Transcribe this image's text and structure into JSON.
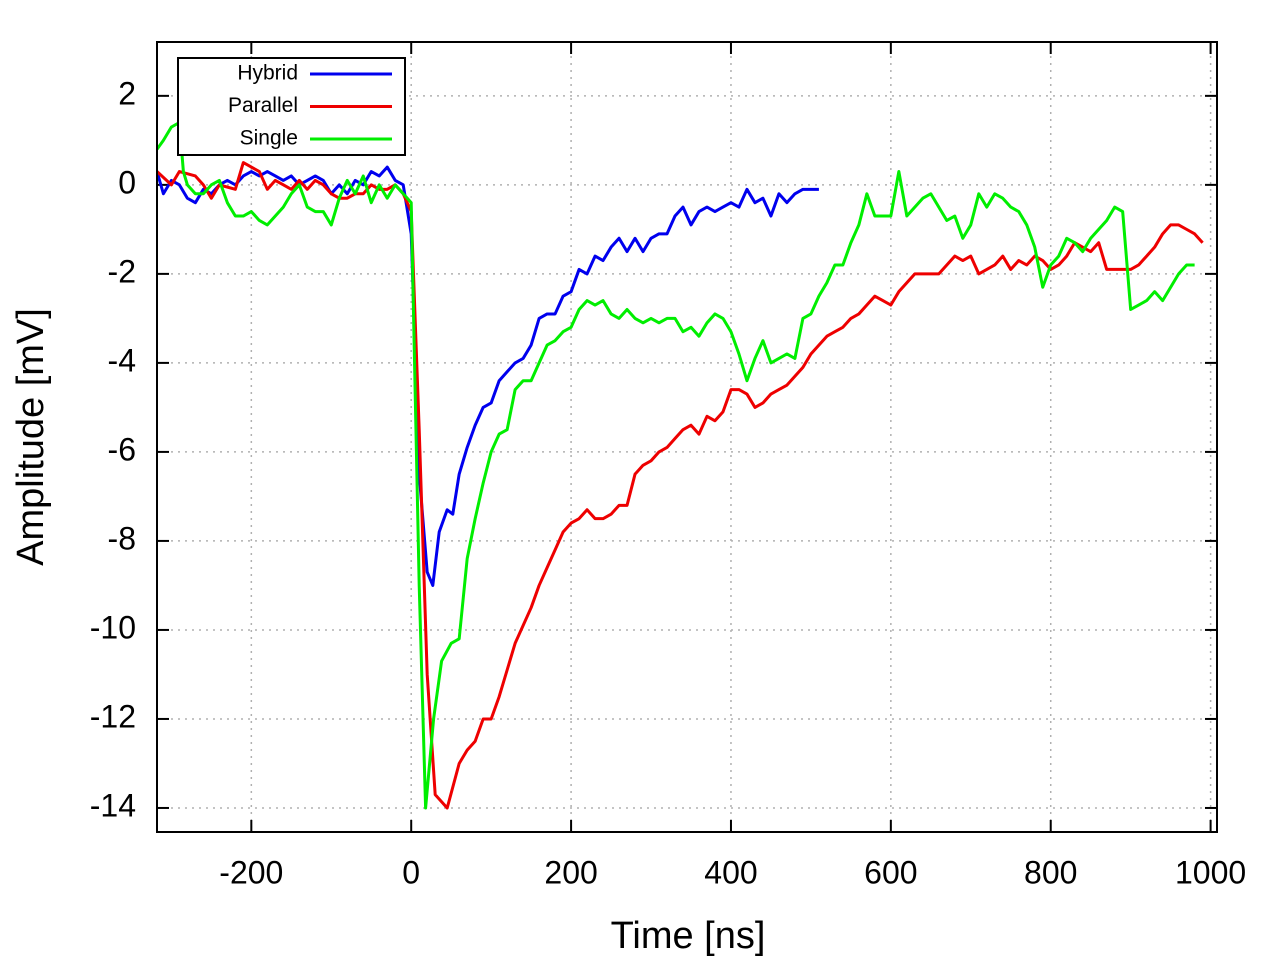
{
  "chart_data": {
    "type": "line",
    "x_label": "Time [ns]",
    "y_label": "Amplitude [mV]",
    "xlim": [
      -318,
      1008
    ],
    "ylim": [
      -14.54,
      3.21
    ],
    "xticks": [
      -200,
      0,
      200,
      400,
      600,
      800,
      1000
    ],
    "yticks": [
      2,
      0,
      -2,
      -4,
      -6,
      -8,
      -10,
      -12,
      -14
    ],
    "grid": true,
    "legend": "upper left",
    "series": [
      {
        "name": "Hybrid",
        "color": "#0000ee",
        "x": [
          -318,
          -310,
          -300,
          -290,
          -280,
          -270,
          -260,
          -250,
          -240,
          -230,
          -220,
          -210,
          -200,
          -190,
          -180,
          -170,
          -160,
          -150,
          -140,
          -130,
          -120,
          -110,
          -100,
          -90,
          -80,
          -70,
          -60,
          -50,
          -40,
          -30,
          -20,
          -10,
          0,
          10,
          20,
          27,
          35,
          45,
          52,
          60,
          70,
          80,
          90,
          100,
          110,
          120,
          130,
          140,
          150,
          160,
          170,
          180,
          190,
          200,
          210,
          220,
          230,
          240,
          250,
          260,
          270,
          280,
          290,
          300,
          310,
          320,
          330,
          340,
          350,
          360,
          370,
          380,
          390,
          400,
          410,
          420,
          430,
          440,
          450,
          460,
          470,
          480,
          490,
          500,
          510
        ],
        "values": [
          0.3,
          -0.2,
          0.1,
          0.0,
          -0.3,
          -0.4,
          -0.1,
          -0.2,
          0.0,
          0.1,
          0.0,
          0.2,
          0.3,
          0.2,
          0.3,
          0.2,
          0.1,
          0.2,
          0.0,
          0.1,
          0.2,
          0.1,
          -0.2,
          0.0,
          -0.2,
          0.1,
          0.0,
          0.3,
          0.2,
          0.4,
          0.1,
          0.0,
          -1.1,
          -6.5,
          -8.7,
          -9.0,
          -7.8,
          -7.3,
          -7.4,
          -6.5,
          -5.9,
          -5.4,
          -5.0,
          -4.9,
          -4.4,
          -4.2,
          -4.0,
          -3.9,
          -3.6,
          -3.0,
          -2.9,
          -2.9,
          -2.5,
          -2.4,
          -1.9,
          -2.0,
          -1.6,
          -1.7,
          -1.4,
          -1.2,
          -1.5,
          -1.2,
          -1.5,
          -1.2,
          -1.1,
          -1.1,
          -0.7,
          -0.5,
          -0.9,
          -0.6,
          -0.5,
          -0.6,
          -0.5,
          -0.4,
          -0.5,
          -0.1,
          -0.4,
          -0.3,
          -0.7,
          -0.2,
          -0.4,
          -0.2,
          -0.1,
          -0.1,
          -0.1
        ]
      },
      {
        "name": "Parallel",
        "color": "#ee0000",
        "x": [
          -318,
          -300,
          -290,
          -270,
          -260,
          -250,
          -240,
          -220,
          -210,
          -200,
          -190,
          -180,
          -170,
          -160,
          -150,
          -140,
          -130,
          -120,
          -110,
          -100,
          -90,
          -80,
          -70,
          -60,
          -50,
          -40,
          -30,
          -20,
          -10,
          0,
          10,
          20,
          30,
          45,
          60,
          70,
          80,
          90,
          100,
          110,
          120,
          130,
          140,
          150,
          160,
          170,
          180,
          190,
          200,
          210,
          220,
          230,
          240,
          250,
          260,
          270,
          280,
          290,
          300,
          310,
          320,
          330,
          340,
          350,
          360,
          370,
          380,
          390,
          400,
          410,
          420,
          430,
          440,
          450,
          460,
          470,
          480,
          490,
          500,
          510,
          520,
          530,
          540,
          550,
          560,
          570,
          580,
          590,
          600,
          610,
          620,
          630,
          650,
          660,
          670,
          680,
          690,
          700,
          710,
          720,
          730,
          740,
          750,
          760,
          770,
          780,
          790,
          800,
          810,
          820,
          830,
          840,
          850,
          860,
          870,
          890,
          900,
          910,
          920,
          930,
          940,
          950,
          960,
          970,
          980,
          990
        ],
        "values": [
          0.3,
          0.0,
          0.3,
          0.2,
          0.0,
          -0.3,
          0.0,
          -0.1,
          0.5,
          0.4,
          0.3,
          -0.1,
          0.1,
          0.0,
          -0.1,
          0.1,
          -0.1,
          0.1,
          0.0,
          -0.2,
          -0.3,
          -0.3,
          -0.2,
          -0.2,
          0.0,
          -0.1,
          -0.1,
          0.0,
          -0.2,
          -0.6,
          -5.5,
          -11.0,
          -13.7,
          -14.0,
          -13.0,
          -12.7,
          -12.5,
          -12.0,
          -12.0,
          -11.5,
          -10.9,
          -10.3,
          -9.9,
          -9.5,
          -9.0,
          -8.6,
          -8.2,
          -7.8,
          -7.6,
          -7.5,
          -7.3,
          -7.5,
          -7.5,
          -7.4,
          -7.2,
          -7.2,
          -6.5,
          -6.3,
          -6.2,
          -6.0,
          -5.9,
          -5.7,
          -5.5,
          -5.4,
          -5.6,
          -5.2,
          -5.3,
          -5.1,
          -4.6,
          -4.6,
          -4.7,
          -5.0,
          -4.9,
          -4.7,
          -4.6,
          -4.5,
          -4.3,
          -4.1,
          -3.8,
          -3.6,
          -3.4,
          -3.3,
          -3.2,
          -3.0,
          -2.9,
          -2.7,
          -2.5,
          -2.6,
          -2.7,
          -2.4,
          -2.2,
          -2.0,
          -2.0,
          -2.0,
          -1.8,
          -1.6,
          -1.7,
          -1.6,
          -2.0,
          -1.9,
          -1.8,
          -1.6,
          -1.9,
          -1.7,
          -1.8,
          -1.6,
          -1.7,
          -1.9,
          -1.8,
          -1.6,
          -1.3,
          -1.4,
          -1.5,
          -1.3,
          -1.9,
          -1.9,
          -1.9,
          -1.8,
          -1.6,
          -1.4,
          -1.1,
          -0.9,
          -0.9,
          -1.0,
          -1.1,
          -1.3
        ]
      },
      {
        "name": "Single",
        "color": "#00ee00",
        "x": [
          -318,
          -310,
          -300,
          -290,
          -285,
          -280,
          -270,
          -260,
          -250,
          -240,
          -230,
          -220,
          -210,
          -200,
          -190,
          -180,
          -170,
          -160,
          -150,
          -140,
          -130,
          -120,
          -110,
          -100,
          -90,
          -80,
          -70,
          -60,
          -50,
          -40,
          -30,
          -20,
          -10,
          0,
          10,
          18,
          28,
          38,
          50,
          60,
          70,
          80,
          90,
          100,
          110,
          120,
          130,
          140,
          150,
          160,
          170,
          180,
          190,
          200,
          210,
          220,
          230,
          240,
          250,
          260,
          270,
          280,
          290,
          300,
          310,
          320,
          330,
          340,
          350,
          360,
          370,
          380,
          390,
          400,
          410,
          420,
          430,
          440,
          450,
          460,
          470,
          480,
          490,
          500,
          510,
          520,
          530,
          540,
          550,
          560,
          570,
          580,
          590,
          600,
          610,
          620,
          630,
          640,
          650,
          660,
          670,
          680,
          690,
          700,
          710,
          720,
          730,
          740,
          750,
          760,
          770,
          780,
          790,
          800,
          810,
          820,
          830,
          840,
          850,
          860,
          870,
          880,
          890,
          900,
          910,
          920,
          930,
          940,
          950,
          960,
          970,
          980
        ],
        "values": [
          0.8,
          1.0,
          1.3,
          1.4,
          0.3,
          0.0,
          -0.2,
          -0.2,
          0.0,
          0.1,
          -0.4,
          -0.7,
          -0.7,
          -0.6,
          -0.8,
          -0.9,
          -0.7,
          -0.5,
          -0.2,
          0.0,
          -0.5,
          -0.6,
          -0.6,
          -0.9,
          -0.3,
          0.1,
          -0.2,
          0.2,
          -0.4,
          0.0,
          -0.3,
          0.0,
          -0.2,
          -0.4,
          -9.0,
          -14.0,
          -12.0,
          -10.7,
          -10.3,
          -10.2,
          -8.4,
          -7.5,
          -6.7,
          -6.0,
          -5.6,
          -5.5,
          -4.6,
          -4.4,
          -4.4,
          -4.0,
          -3.6,
          -3.5,
          -3.3,
          -3.2,
          -2.8,
          -2.6,
          -2.7,
          -2.6,
          -2.9,
          -3.0,
          -2.8,
          -3.0,
          -3.1,
          -3.0,
          -3.1,
          -3.0,
          -3.0,
          -3.3,
          -3.2,
          -3.4,
          -3.1,
          -2.9,
          -3.0,
          -3.3,
          -3.8,
          -4.4,
          -3.9,
          -3.5,
          -4.0,
          -3.9,
          -3.8,
          -3.9,
          -3.0,
          -2.9,
          -2.5,
          -2.2,
          -1.8,
          -1.8,
          -1.3,
          -0.9,
          -0.2,
          -0.7,
          -0.7,
          -0.7,
          0.3,
          -0.7,
          -0.5,
          -0.3,
          -0.2,
          -0.5,
          -0.8,
          -0.7,
          -1.2,
          -0.9,
          -0.2,
          -0.5,
          -0.2,
          -0.3,
          -0.5,
          -0.6,
          -0.9,
          -1.4,
          -2.3,
          -1.8,
          -1.6,
          -1.2,
          -1.3,
          -1.5,
          -1.2,
          -1.0,
          -0.8,
          -0.5,
          -0.6,
          -2.8,
          -2.7,
          -2.6,
          -2.4,
          -2.6,
          -2.3,
          -2.0,
          -1.8,
          -1.8
        ]
      }
    ]
  }
}
